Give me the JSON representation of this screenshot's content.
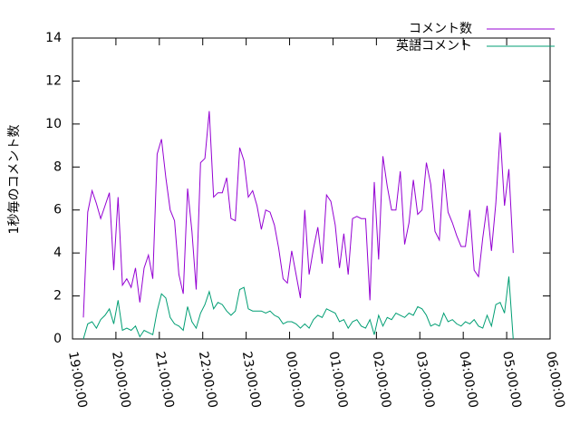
{
  "chart_data": {
    "type": "line",
    "ylabel": "1秒毎のコメント数",
    "x": [
      19.25,
      19.35,
      19.45,
      19.55,
      19.65,
      19.75,
      19.85,
      19.95,
      20.05,
      20.15,
      20.25,
      20.35,
      20.45,
      20.55,
      20.65,
      20.75,
      20.85,
      20.95,
      21.05,
      21.15,
      21.25,
      21.35,
      21.45,
      21.55,
      21.65,
      21.75,
      21.85,
      21.95,
      22.05,
      22.15,
      22.25,
      22.35,
      22.45,
      22.55,
      22.65,
      22.75,
      22.85,
      22.95,
      23.05,
      23.15,
      23.25,
      23.35,
      23.45,
      23.55,
      23.65,
      23.75,
      23.85,
      23.95,
      24.05,
      24.15,
      24.25,
      24.35,
      24.45,
      24.55,
      24.65,
      24.75,
      24.85,
      24.95,
      25.05,
      25.15,
      25.25,
      25.35,
      25.45,
      25.55,
      25.65,
      25.75,
      25.85,
      25.95,
      26.05,
      26.15,
      26.25,
      26.35,
      26.45,
      26.55,
      26.65,
      26.75,
      26.85,
      26.95,
      27.05,
      27.15,
      27.25,
      27.35,
      27.45,
      27.55,
      27.65,
      27.75,
      27.85,
      27.95,
      28.05,
      28.15,
      28.25,
      28.35,
      28.45,
      28.55,
      28.65,
      28.75,
      28.85,
      28.95,
      29.05,
      29.15
    ],
    "series": [
      {
        "name": "コメント数",
        "color": "#9400d3",
        "values": [
          1.0,
          5.9,
          6.9,
          6.3,
          5.6,
          6.2,
          6.8,
          3.2,
          6.6,
          2.5,
          2.8,
          2.4,
          3.3,
          1.7,
          3.3,
          3.9,
          2.8,
          8.6,
          9.3,
          7.5,
          6.0,
          5.5,
          3.0,
          2.1,
          7.0,
          5.0,
          2.3,
          8.2,
          8.4,
          10.6,
          6.6,
          6.8,
          6.8,
          7.5,
          5.6,
          5.5,
          8.9,
          8.3,
          6.6,
          6.9,
          6.2,
          5.1,
          6.0,
          5.9,
          5.3,
          4.2,
          2.8,
          2.6,
          4.1,
          3.0,
          1.9,
          6.0,
          3.0,
          4.2,
          5.2,
          3.5,
          6.7,
          6.4,
          5.3,
          3.3,
          4.9,
          3.0,
          5.6,
          5.7,
          5.6,
          5.6,
          1.8,
          7.3,
          3.7,
          8.5,
          7.1,
          6.0,
          6.0,
          7.8,
          4.4,
          5.4,
          7.4,
          5.8,
          6.0,
          8.2,
          7.2,
          5.0,
          4.6,
          7.9,
          5.9,
          5.4,
          4.8,
          4.3,
          4.3,
          6.0,
          3.2,
          2.9,
          4.7,
          6.2,
          4.1,
          6.3,
          9.6,
          6.2,
          7.9,
          4.0
        ]
      },
      {
        "name": "英語コメント",
        "color": "#009e73",
        "values": [
          0.0,
          0.7,
          0.8,
          0.5,
          0.9,
          1.1,
          1.4,
          0.7,
          1.8,
          0.4,
          0.5,
          0.4,
          0.6,
          0.1,
          0.4,
          0.3,
          0.2,
          1.3,
          2.1,
          1.9,
          1.0,
          0.7,
          0.6,
          0.4,
          1.5,
          0.8,
          0.5,
          1.2,
          1.6,
          2.2,
          1.4,
          1.7,
          1.6,
          1.3,
          1.1,
          1.3,
          2.3,
          2.4,
          1.4,
          1.3,
          1.3,
          1.3,
          1.2,
          1.3,
          1.1,
          1.0,
          0.7,
          0.8,
          0.8,
          0.7,
          0.5,
          0.7,
          0.5,
          0.9,
          1.1,
          1.0,
          1.4,
          1.3,
          1.2,
          0.8,
          0.9,
          0.5,
          0.8,
          0.9,
          0.6,
          0.5,
          0.9,
          0.2,
          1.1,
          0.6,
          1.0,
          0.9,
          1.2,
          1.1,
          1.0,
          1.2,
          1.1,
          1.5,
          1.4,
          1.1,
          0.6,
          0.7,
          0.6,
          1.2,
          0.8,
          0.9,
          0.7,
          0.6,
          0.8,
          0.7,
          0.9,
          0.6,
          0.5,
          1.1,
          0.6,
          1.6,
          1.7,
          1.2,
          2.9,
          0.0
        ]
      }
    ],
    "xlim": [
      19,
      30
    ],
    "xticks": [
      {
        "value": 19,
        "label": "19:00:00"
      },
      {
        "value": 20,
        "label": "20:00:00"
      },
      {
        "value": 21,
        "label": "21:00:00"
      },
      {
        "value": 22,
        "label": "22:00:00"
      },
      {
        "value": 23,
        "label": "23:00:00"
      },
      {
        "value": 24,
        "label": "00:00:00"
      },
      {
        "value": 25,
        "label": "01:00:00"
      },
      {
        "value": 26,
        "label": "02:00:00"
      },
      {
        "value": 27,
        "label": "03:00:00"
      },
      {
        "value": 28,
        "label": "04:00:00"
      },
      {
        "value": 29,
        "label": "05:00:00"
      },
      {
        "value": 30,
        "label": "06:00:00"
      }
    ],
    "ylim": [
      0,
      14
    ],
    "yticks": [
      0,
      2,
      4,
      6,
      8,
      10,
      12,
      14
    ],
    "legend": "top-right"
  }
}
